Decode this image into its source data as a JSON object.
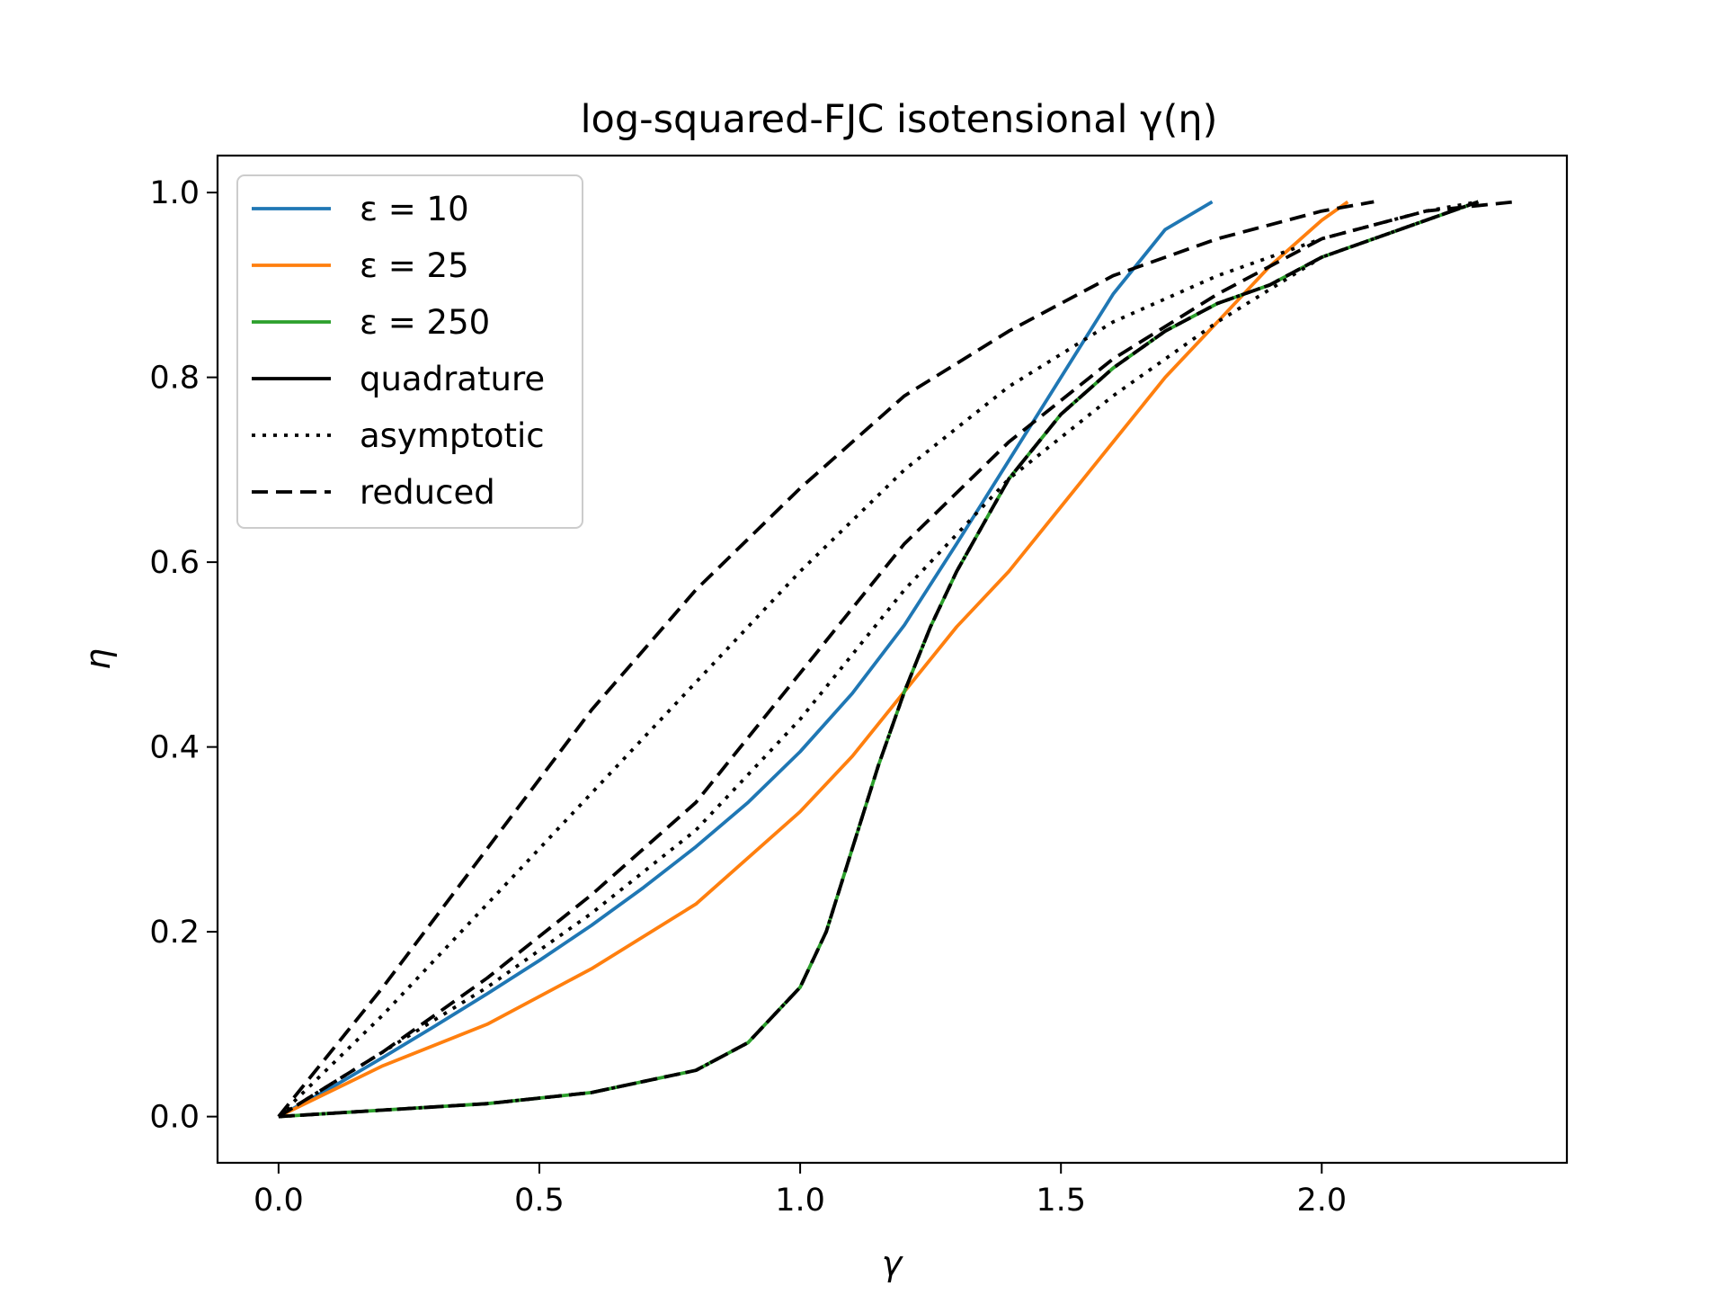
{
  "chart_data": {
    "type": "line",
    "title": "log-squared-FJC isotensional γ(η)",
    "xlabel": "γ",
    "ylabel": "η",
    "xlim": [
      -0.117,
      2.47
    ],
    "ylim": [
      -0.05,
      1.04
    ],
    "xticks": [
      0.0,
      0.5,
      1.0,
      1.5,
      2.0
    ],
    "xtick_labels": [
      "0.0",
      "0.5",
      "1.0",
      "1.5",
      "2.0"
    ],
    "yticks": [
      0.0,
      0.2,
      0.4,
      0.6,
      0.8,
      1.0
    ],
    "ytick_labels": [
      "0.0",
      "0.2",
      "0.4",
      "0.6",
      "0.8",
      "1.0"
    ],
    "grid": false,
    "legend_position": "upper-left",
    "legend": [
      {
        "label": "ε = 10",
        "color": "#1f77b4",
        "dash": "solid"
      },
      {
        "label": "ε = 25",
        "color": "#ff7f0e",
        "dash": "solid"
      },
      {
        "label": "ε = 250",
        "color": "#2ca02c",
        "dash": "solid"
      },
      {
        "label": "quadrature",
        "color": "#000000",
        "dash": "solid"
      },
      {
        "label": "asymptotic",
        "color": "#000000",
        "dash": "dotted"
      },
      {
        "label": "reduced",
        "color": "#000000",
        "dash": "dashed"
      }
    ],
    "series": [
      {
        "group": "ε = 10",
        "kind": "quadrature",
        "color": "#1f77b4",
        "dash": "solid",
        "points": [
          [
            0,
            0
          ],
          [
            0.1,
            0.031
          ],
          [
            0.2,
            0.064
          ],
          [
            0.3,
            0.098
          ],
          [
            0.4,
            0.133
          ],
          [
            0.5,
            0.169
          ],
          [
            0.6,
            0.207
          ],
          [
            0.7,
            0.248
          ],
          [
            0.8,
            0.292
          ],
          [
            0.9,
            0.34
          ],
          [
            1.0,
            0.395
          ],
          [
            1.1,
            0.458
          ],
          [
            1.2,
            0.532
          ],
          [
            1.3,
            0.62
          ],
          [
            1.4,
            0.71
          ],
          [
            1.5,
            0.8
          ],
          [
            1.6,
            0.89
          ],
          [
            1.7,
            0.96
          ],
          [
            1.79,
            0.99
          ]
        ]
      },
      {
        "group": "ε = 25",
        "kind": "quadrature",
        "color": "#ff7f0e",
        "dash": "solid",
        "points": [
          [
            0,
            0
          ],
          [
            0.2,
            0.055
          ],
          [
            0.4,
            0.1
          ],
          [
            0.6,
            0.16
          ],
          [
            0.8,
            0.23
          ],
          [
            1.0,
            0.33
          ],
          [
            1.1,
            0.39
          ],
          [
            1.2,
            0.46
          ],
          [
            1.3,
            0.53
          ],
          [
            1.4,
            0.59
          ],
          [
            1.5,
            0.66
          ],
          [
            1.6,
            0.73
          ],
          [
            1.7,
            0.8
          ],
          [
            1.8,
            0.86
          ],
          [
            1.9,
            0.92
          ],
          [
            2.0,
            0.97
          ],
          [
            2.05,
            0.99
          ]
        ]
      },
      {
        "group": "ε = 250",
        "kind": "quadrature",
        "color": "#2ca02c",
        "dash": "solid",
        "points": [
          [
            0,
            0
          ],
          [
            0.2,
            0.007
          ],
          [
            0.4,
            0.014
          ],
          [
            0.6,
            0.026
          ],
          [
            0.8,
            0.05
          ],
          [
            0.9,
            0.08
          ],
          [
            1.0,
            0.14
          ],
          [
            1.05,
            0.2
          ],
          [
            1.1,
            0.29
          ],
          [
            1.15,
            0.38
          ],
          [
            1.2,
            0.46
          ],
          [
            1.25,
            0.53
          ],
          [
            1.3,
            0.59
          ],
          [
            1.4,
            0.69
          ],
          [
            1.5,
            0.76
          ],
          [
            1.6,
            0.81
          ],
          [
            1.7,
            0.85
          ],
          [
            1.8,
            0.88
          ],
          [
            1.9,
            0.9
          ],
          [
            2.0,
            0.93
          ],
          [
            2.1,
            0.95
          ],
          [
            2.2,
            0.97
          ],
          [
            2.3,
            0.99
          ]
        ]
      },
      {
        "group": "ε = 10",
        "kind": "asymptotic",
        "color": "#000000",
        "dash": "dotted",
        "points": [
          [
            0,
            0
          ],
          [
            0.2,
            0.11
          ],
          [
            0.4,
            0.23
          ],
          [
            0.6,
            0.35
          ],
          [
            0.8,
            0.47
          ],
          [
            1.0,
            0.59
          ],
          [
            1.2,
            0.7
          ],
          [
            1.4,
            0.79
          ],
          [
            1.6,
            0.86
          ],
          [
            1.8,
            0.91
          ],
          [
            2.0,
            0.95
          ],
          [
            2.2,
            0.98
          ],
          [
            2.3,
            0.99
          ]
        ]
      },
      {
        "group": "ε = 25",
        "kind": "asymptotic",
        "color": "#000000",
        "dash": "dotted",
        "points": [
          [
            0,
            0
          ],
          [
            0.2,
            0.07
          ],
          [
            0.4,
            0.14
          ],
          [
            0.6,
            0.22
          ],
          [
            0.8,
            0.31
          ],
          [
            1.0,
            0.43
          ],
          [
            1.2,
            0.57
          ],
          [
            1.4,
            0.69
          ],
          [
            1.6,
            0.78
          ],
          [
            1.8,
            0.86
          ],
          [
            2.0,
            0.93
          ],
          [
            2.2,
            0.97
          ],
          [
            2.3,
            0.99
          ]
        ]
      },
      {
        "group": "ε = 250",
        "kind": "asymptotic",
        "color": "#000000",
        "dash": "dotted",
        "points": [
          [
            0,
            0
          ],
          [
            0.2,
            0.007
          ],
          [
            0.4,
            0.014
          ],
          [
            0.6,
            0.026
          ],
          [
            0.8,
            0.05
          ],
          [
            0.9,
            0.08
          ],
          [
            1.0,
            0.14
          ],
          [
            1.05,
            0.2
          ],
          [
            1.1,
            0.29
          ],
          [
            1.15,
            0.38
          ],
          [
            1.2,
            0.46
          ],
          [
            1.25,
            0.53
          ],
          [
            1.3,
            0.59
          ],
          [
            1.4,
            0.69
          ],
          [
            1.5,
            0.76
          ],
          [
            1.6,
            0.81
          ],
          [
            1.7,
            0.85
          ],
          [
            1.8,
            0.88
          ],
          [
            1.9,
            0.9
          ],
          [
            2.0,
            0.93
          ],
          [
            2.1,
            0.95
          ],
          [
            2.2,
            0.97
          ],
          [
            2.3,
            0.99
          ]
        ]
      },
      {
        "group": "ε = 10",
        "kind": "reduced",
        "color": "#000000",
        "dash": "dashed",
        "points": [
          [
            0,
            0
          ],
          [
            0.2,
            0.14
          ],
          [
            0.4,
            0.29
          ],
          [
            0.6,
            0.44
          ],
          [
            0.8,
            0.57
          ],
          [
            1.0,
            0.68
          ],
          [
            1.2,
            0.78
          ],
          [
            1.4,
            0.85
          ],
          [
            1.6,
            0.91
          ],
          [
            1.8,
            0.95
          ],
          [
            2.0,
            0.98
          ],
          [
            2.1,
            0.99
          ]
        ]
      },
      {
        "group": "ε = 25",
        "kind": "reduced",
        "color": "#000000",
        "dash": "dashed",
        "points": [
          [
            0,
            0
          ],
          [
            0.2,
            0.07
          ],
          [
            0.4,
            0.15
          ],
          [
            0.6,
            0.24
          ],
          [
            0.8,
            0.34
          ],
          [
            0.9,
            0.41
          ],
          [
            1.0,
            0.48
          ],
          [
            1.2,
            0.62
          ],
          [
            1.4,
            0.73
          ],
          [
            1.6,
            0.82
          ],
          [
            1.8,
            0.89
          ],
          [
            2.0,
            0.95
          ],
          [
            2.2,
            0.98
          ],
          [
            2.37,
            0.99
          ]
        ]
      },
      {
        "group": "ε = 250",
        "kind": "reduced",
        "color": "#000000",
        "dash": "dashed",
        "points": [
          [
            0,
            0
          ],
          [
            0.2,
            0.007
          ],
          [
            0.4,
            0.014
          ],
          [
            0.6,
            0.026
          ],
          [
            0.8,
            0.05
          ],
          [
            0.9,
            0.08
          ],
          [
            1.0,
            0.14
          ],
          [
            1.05,
            0.2
          ],
          [
            1.1,
            0.29
          ],
          [
            1.15,
            0.38
          ],
          [
            1.2,
            0.46
          ],
          [
            1.25,
            0.53
          ],
          [
            1.3,
            0.59
          ],
          [
            1.4,
            0.69
          ],
          [
            1.5,
            0.76
          ],
          [
            1.6,
            0.81
          ],
          [
            1.7,
            0.85
          ],
          [
            1.8,
            0.88
          ],
          [
            1.9,
            0.9
          ],
          [
            2.0,
            0.93
          ],
          [
            2.1,
            0.95
          ],
          [
            2.2,
            0.97
          ],
          [
            2.3,
            0.99
          ]
        ]
      }
    ]
  }
}
